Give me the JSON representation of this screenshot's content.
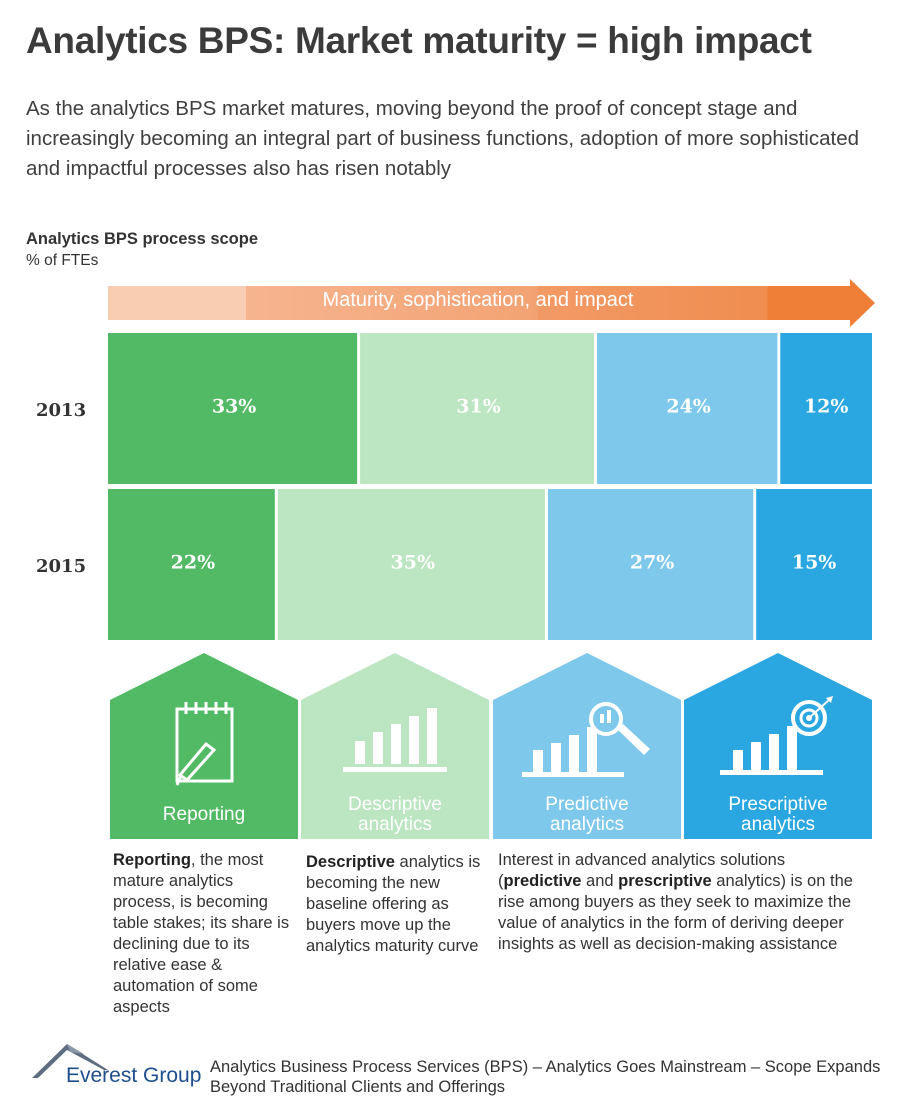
{
  "title": "Analytics BPS: Market maturity = high impact",
  "subtitle": "As the analytics BPS market matures, moving beyond the proof of concept stage and increasingly becoming an integral part of business functions, adoption of more sophisticated and impactful processes also has risen notably",
  "scope": {
    "title": "Analytics BPS process scope",
    "unit": "% of FTEs",
    "arrow_label": "Maturity, sophistication, and impact"
  },
  "colors": {
    "reporting": "#52b964",
    "descriptive": "#bce5c1",
    "predictive": "#7ec8ec",
    "prescriptive": "#2aa6e0",
    "arrow_start": "#f9c9ab",
    "arrow_end": "#f08036"
  },
  "chart_data": {
    "type": "bar",
    "orientation": "horizontal-stacked-100",
    "title": "Analytics BPS process scope",
    "ylabel": "% of FTEs",
    "categories": [
      "2013",
      "2015"
    ],
    "series": [
      {
        "name": "Reporting",
        "values": [
          33,
          22
        ],
        "labels": [
          "33%",
          "22%"
        ]
      },
      {
        "name": "Descriptive analytics",
        "values": [
          31,
          35
        ],
        "labels": [
          "31%",
          "35%"
        ]
      },
      {
        "name": "Predictive analytics",
        "values": [
          24,
          27
        ],
        "labels": [
          "24%",
          "27%"
        ]
      },
      {
        "name": "Prescriptive analytics",
        "values": [
          12,
          15
        ],
        "labels": [
          "12%",
          "15%"
        ]
      }
    ]
  },
  "houses": [
    {
      "name": "Reporting",
      "lines": [
        "Reporting"
      ],
      "icon": "notepad-pen-icon"
    },
    {
      "name": "Descriptive analytics",
      "lines": [
        "Descriptive",
        "analytics"
      ],
      "icon": "bar-chart-icon"
    },
    {
      "name": "Predictive analytics",
      "lines": [
        "Predictive",
        "analytics"
      ],
      "icon": "magnifier-chart-icon"
    },
    {
      "name": "Prescriptive analytics",
      "lines": [
        "Prescriptive",
        "analytics"
      ],
      "icon": "target-chart-icon"
    }
  ],
  "descriptions": {
    "reporting": {
      "bold": "Reporting",
      "rest": ", the most mature analytics process, is becoming table stakes; its share is declining due to its relative ease & automation of some aspects"
    },
    "descriptive": {
      "bold": "Descriptive",
      "rest": " analytics is becoming the new baseline offering as buyers move up the analytics maturity curve"
    },
    "advanced": {
      "part1": "Interest in advanced analytics solutions (",
      "bold1": "predictive",
      "part2": " and ",
      "bold2": "prescriptive",
      "part3": " analytics) is on the rise among buyers as they seek to maximize the value of analytics in the form of deriving deeper insights as well as decision-making assistance"
    }
  },
  "footer": {
    "logo_text": "Everest Group",
    "source": "Analytics Business Process Services (BPS) – Analytics Goes Mainstream – Scope Expands Beyond Traditional Clients and Offerings"
  }
}
